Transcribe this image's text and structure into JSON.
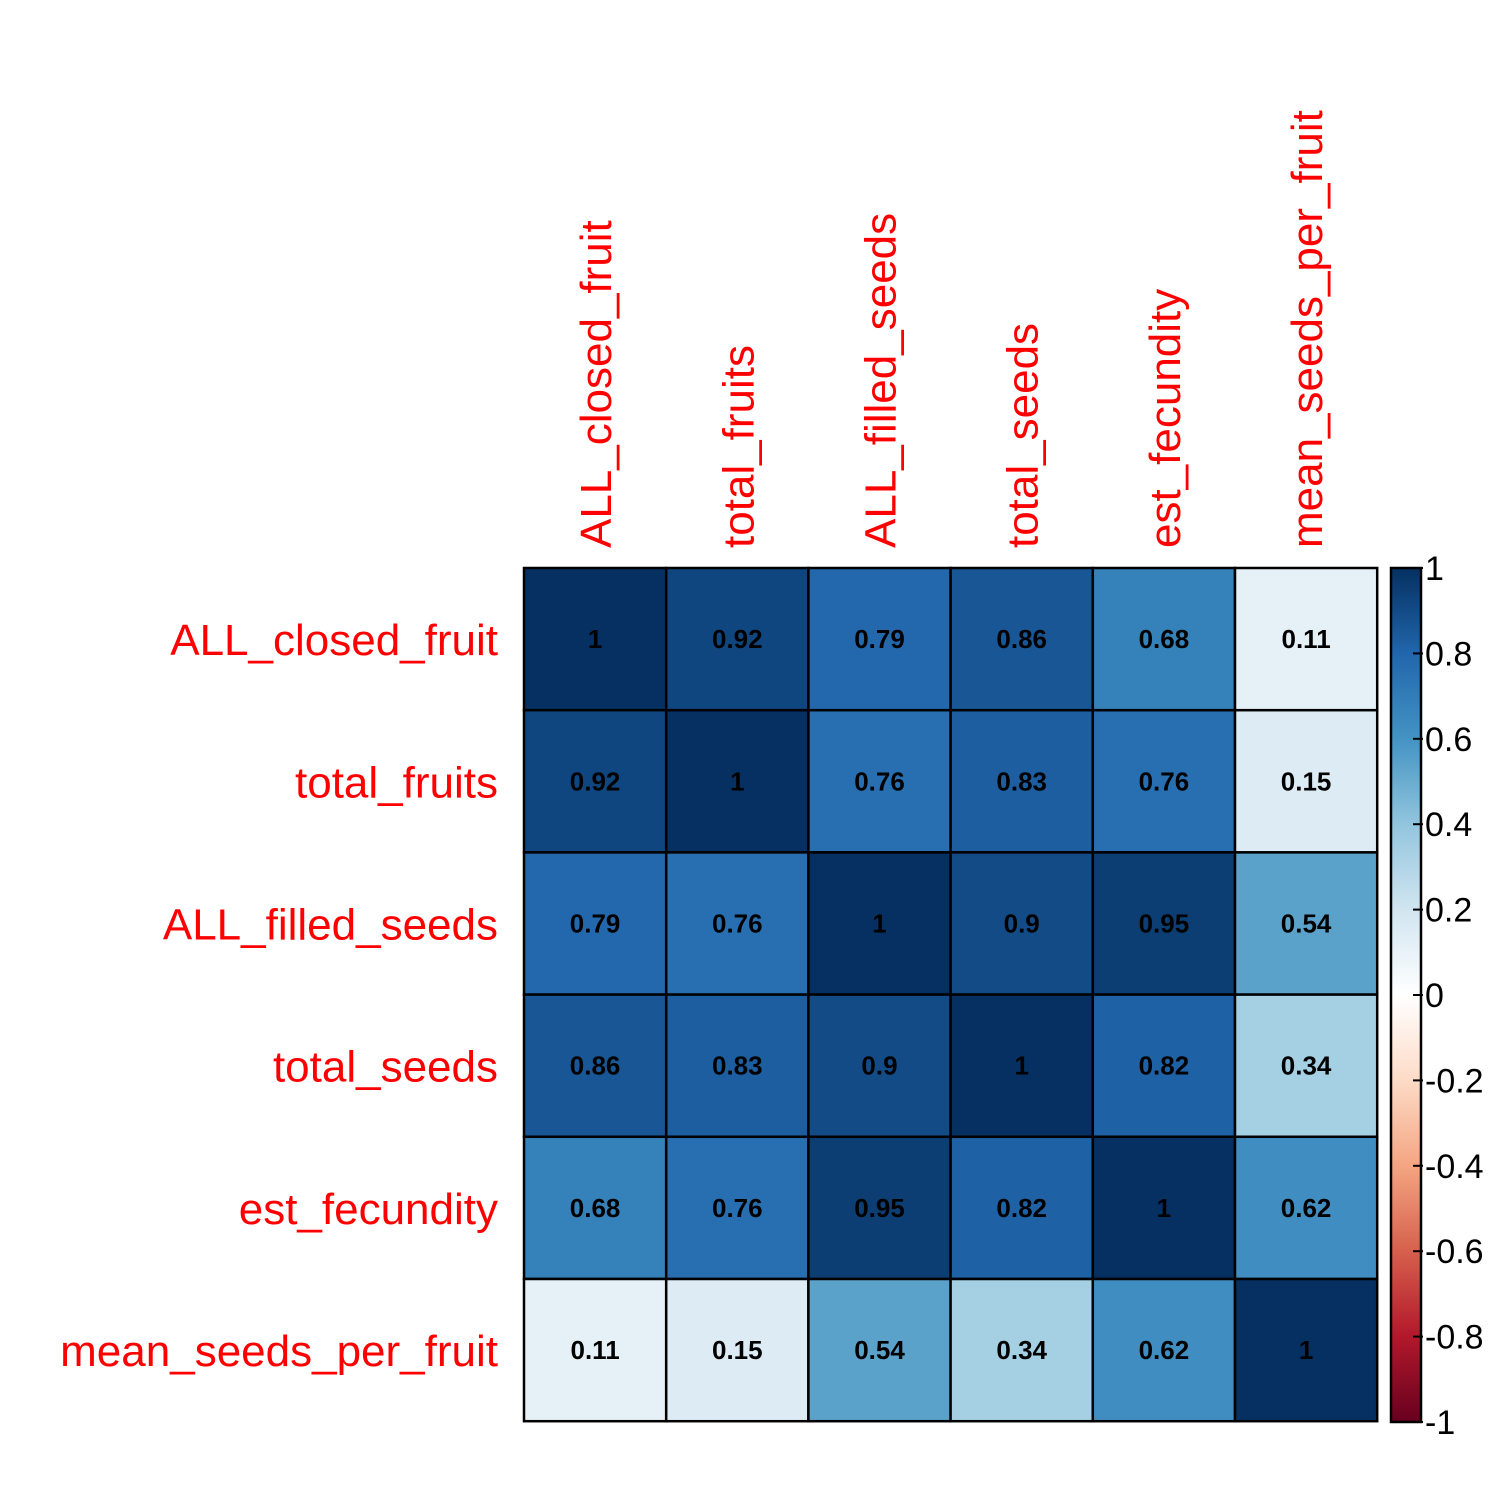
{
  "chart_data": {
    "type": "heatmap",
    "variables": [
      "ALL_closed_fruit",
      "total_fruits",
      "ALL_filled_seeds",
      "total_seeds",
      "est_fecundity",
      "mean_seeds_per_fruit"
    ],
    "matrix": [
      [
        1,
        0.92,
        0.79,
        0.86,
        0.68,
        0.11
      ],
      [
        0.92,
        1,
        0.76,
        0.83,
        0.76,
        0.15
      ],
      [
        0.79,
        0.76,
        1,
        0.9,
        0.95,
        0.54
      ],
      [
        0.86,
        0.83,
        0.9,
        1,
        0.82,
        0.34
      ],
      [
        0.68,
        0.76,
        0.95,
        0.82,
        1,
        0.62
      ],
      [
        0.11,
        0.15,
        0.54,
        0.34,
        0.62,
        1
      ]
    ],
    "labels": [
      [
        "1",
        "0.92",
        "0.79",
        "0.86",
        "0.68",
        "0.11"
      ],
      [
        "0.92",
        "1",
        "0.76",
        "0.83",
        "0.76",
        "0.15"
      ],
      [
        "0.79",
        "0.76",
        "1",
        "0.9",
        "0.95",
        "0.54"
      ],
      [
        "0.86",
        "0.83",
        "0.9",
        "1",
        "0.82",
        "0.34"
      ],
      [
        "0.68",
        "0.76",
        "0.95",
        "0.82",
        "1",
        "0.62"
      ],
      [
        "0.11",
        "0.15",
        "0.54",
        "0.34",
        "0.62",
        "1"
      ]
    ],
    "colorbar": {
      "range": [
        -1,
        1
      ],
      "ticks": [
        1,
        0.8,
        0.6,
        0.4,
        0.2,
        0,
        -0.2,
        -0.4,
        -0.6,
        -0.8,
        -1
      ],
      "tick_labels": [
        "1",
        "0.8",
        "0.6",
        "0.4",
        "0.2",
        "0",
        "-0.2",
        "-0.4",
        "-0.6",
        "-0.8",
        "-1"
      ],
      "placement": "right"
    },
    "label_color": "#FF0000",
    "palette": [
      "#67001F",
      "#B2182B",
      "#D6604D",
      "#F4A582",
      "#FDDBC7",
      "#FFFFFF",
      "#D1E5F0",
      "#92C5DE",
      "#4393C3",
      "#2166AC",
      "#053061"
    ],
    "title": "",
    "xlabel": "",
    "ylabel": "",
    "grid": true
  }
}
